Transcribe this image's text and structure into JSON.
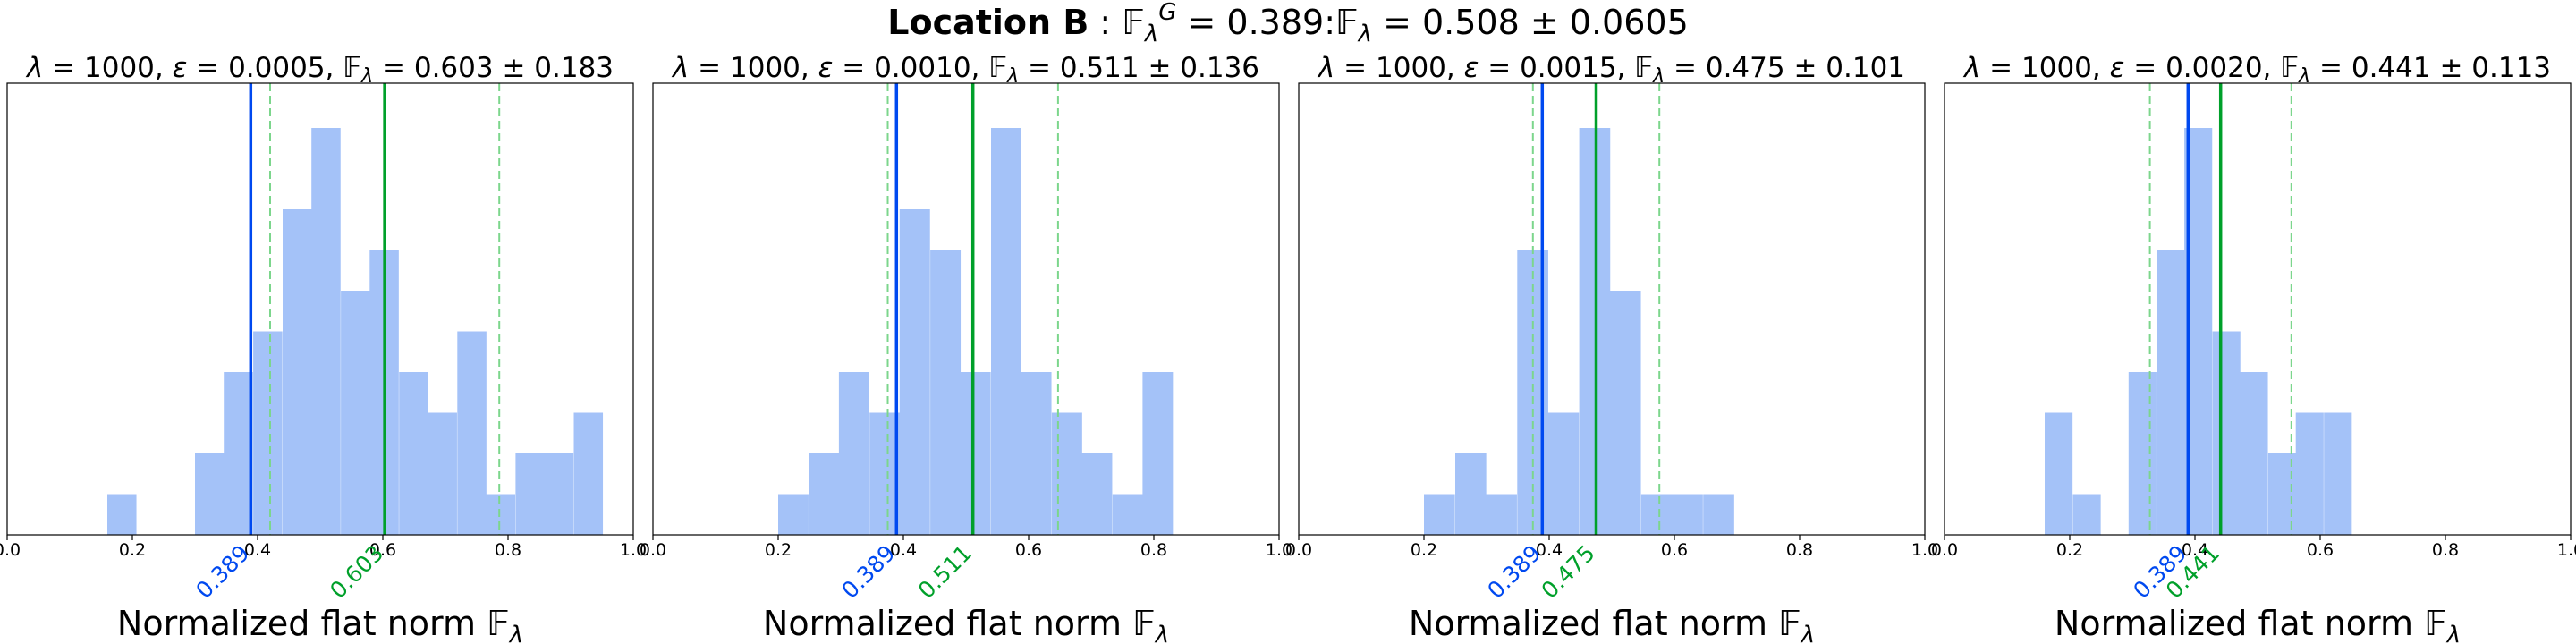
{
  "figure_title": {
    "prefix": "Location B",
    "fg_value": "= 0.389:",
    "f_value": "= 0.508 ± 0.0605"
  },
  "symbols": {
    "lambda": "λ",
    "epsilon": "ε",
    "flat_norm": "𝔽",
    "hat": "^",
    "tilde": "~",
    "superscript_g": "G"
  },
  "colors": {
    "bars": "#a4c2f8",
    "ground_truth_line": "#0049f0",
    "mean_line": "#00a02a",
    "band_line": "#7cd68c",
    "axes": "#000000"
  },
  "chart_data": [
    {
      "type": "bar",
      "title_lambda": "= 1000,",
      "title_eps": "= 0.0005,",
      "title_f": "= 0.603 ± 0.183",
      "xlabel": "Normalized flat norm",
      "xlim": [
        0.0,
        1.0
      ],
      "x_ticks": [
        "0.0",
        "0.2",
        "0.4",
        "0.6",
        "0.8",
        "1.0"
      ],
      "bin_width": 0.0465,
      "bin_edges": [
        0.16,
        0.207,
        0.3,
        0.346,
        0.393,
        0.44,
        0.486,
        0.533,
        0.579,
        0.626,
        0.672,
        0.719,
        0.765,
        0.812,
        0.858,
        0.905,
        0.951
      ],
      "counts": [
        1,
        0,
        2,
        4,
        5,
        8,
        10,
        6,
        7,
        4,
        3,
        5,
        1,
        2,
        2,
        3
      ],
      "ground_truth": 0.389,
      "ground_truth_label": "0.389",
      "mean": 0.603,
      "mean_label": "0.603",
      "std": 0.183
    },
    {
      "type": "bar",
      "title_lambda": "= 1000,",
      "title_eps": "= 0.0010,",
      "title_f": "= 0.511 ± 0.136",
      "xlabel": "Normalized flat norm",
      "xlim": [
        0.0,
        1.0
      ],
      "x_ticks": [
        "0.0",
        "0.2",
        "0.4",
        "0.6",
        "0.8",
        "1.0"
      ],
      "bin_width": 0.0485,
      "bin_edges": [
        0.2,
        0.249,
        0.297,
        0.346,
        0.394,
        0.443,
        0.491,
        0.54,
        0.588,
        0.637,
        0.685,
        0.734,
        0.782
      ],
      "counts": [
        1,
        2,
        4,
        3,
        8,
        7,
        4,
        10,
        4,
        3,
        2,
        1,
        4
      ],
      "ground_truth": 0.389,
      "ground_truth_label": "0.389",
      "mean": 0.511,
      "mean_label": "0.511",
      "std": 0.136
    },
    {
      "type": "bar",
      "title_lambda": "= 1000,",
      "title_eps": "= 0.0015,",
      "title_f": "= 0.475 ± 0.101",
      "xlabel": "Normalized flat norm",
      "xlim": [
        0.0,
        1.0
      ],
      "x_ticks": [
        "0.0",
        "0.2",
        "0.4",
        "0.6",
        "0.8",
        "1.0"
      ],
      "bin_width": 0.0495,
      "bin_edges": [
        0.2,
        0.25,
        0.299,
        0.349,
        0.398,
        0.448,
        0.497,
        0.547,
        0.596,
        0.646,
        0.695
      ],
      "counts": [
        1,
        2,
        1,
        7,
        3,
        10,
        6,
        1,
        1,
        1
      ],
      "ground_truth": 0.389,
      "ground_truth_label": "0.389",
      "mean": 0.475,
      "mean_label": "0.475",
      "std": 0.101
    },
    {
      "type": "bar",
      "title_lambda": "= 1000,",
      "title_eps": "= 0.0020,",
      "title_f": "= 0.441 ± 0.113",
      "xlabel": "Normalized flat norm",
      "xlim": [
        0.0,
        1.0
      ],
      "x_ticks": [
        "0.0",
        "0.2",
        "0.4",
        "0.6",
        "0.8",
        "1.0"
      ],
      "bin_width": 0.0445,
      "bin_edges": [
        0.16,
        0.205,
        0.25,
        0.294,
        0.339,
        0.383,
        0.428,
        0.472,
        0.517,
        0.561,
        0.606,
        0.65
      ],
      "counts": [
        3,
        1,
        0,
        4,
        7,
        10,
        5,
        4,
        2,
        3,
        3
      ],
      "ground_truth": 0.389,
      "ground_truth_label": "0.389",
      "mean": 0.441,
      "mean_label": "0.441",
      "std": 0.113
    }
  ]
}
